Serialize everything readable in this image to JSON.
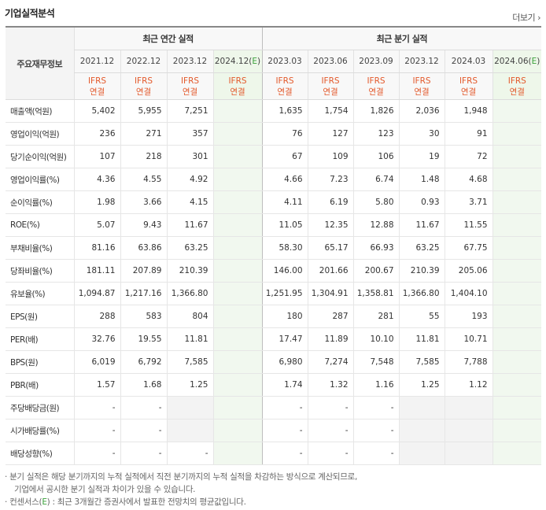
{
  "header": {
    "title": "기업실적분석",
    "more_label": "더보기 ›"
  },
  "table": {
    "row_header_label": "주요재무정보",
    "annual_group_label": "최근 연간 실적",
    "quarter_group_label": "최근 분기 실적",
    "annual_periods": [
      "2021.12",
      "2022.12",
      "2023.12",
      "2024.12(E)"
    ],
    "quarter_periods": [
      "2023.03",
      "2023.06",
      "2023.09",
      "2023.12",
      "2024.03",
      "2024.06(E)"
    ],
    "ifrs_label": "IFRS",
    "basis_label": "연결",
    "rows": [
      {
        "label": "매출액(억원)",
        "annual": [
          "5,402",
          "5,955",
          "7,251",
          ""
        ],
        "quarter": [
          "1,635",
          "1,754",
          "1,826",
          "2,036",
          "1,948",
          ""
        ]
      },
      {
        "label": "영업이익(억원)",
        "annual": [
          "236",
          "271",
          "357",
          ""
        ],
        "quarter": [
          "76",
          "127",
          "123",
          "30",
          "91",
          ""
        ]
      },
      {
        "label": "당기순이익(억원)",
        "annual": [
          "107",
          "218",
          "301",
          ""
        ],
        "quarter": [
          "67",
          "109",
          "106",
          "19",
          "72",
          ""
        ]
      },
      {
        "label": "영업이익률(%)",
        "annual": [
          "4.36",
          "4.55",
          "4.92",
          ""
        ],
        "quarter": [
          "4.66",
          "7.23",
          "6.74",
          "1.48",
          "4.68",
          ""
        ]
      },
      {
        "label": "순이익률(%)",
        "annual": [
          "1.98",
          "3.66",
          "4.15",
          ""
        ],
        "quarter": [
          "4.11",
          "6.19",
          "5.80",
          "0.93",
          "3.71",
          ""
        ]
      },
      {
        "label": "ROE(%)",
        "annual": [
          "5.07",
          "9.43",
          "11.67",
          ""
        ],
        "quarter": [
          "11.05",
          "12.35",
          "12.88",
          "11.67",
          "11.55",
          ""
        ]
      },
      {
        "label": "부채비율(%)",
        "annual": [
          "81.16",
          "63.86",
          "63.25",
          ""
        ],
        "quarter": [
          "58.30",
          "65.17",
          "66.93",
          "63.25",
          "67.75",
          ""
        ]
      },
      {
        "label": "당좌비율(%)",
        "annual": [
          "181.11",
          "207.89",
          "210.39",
          ""
        ],
        "quarter": [
          "146.00",
          "201.66",
          "200.67",
          "210.39",
          "205.06",
          ""
        ]
      },
      {
        "label": "유보율(%)",
        "annual": [
          "1,094.87",
          "1,217.16",
          "1,366.80",
          ""
        ],
        "quarter": [
          "1,251.95",
          "1,304.91",
          "1,358.81",
          "1,366.80",
          "1,404.10",
          ""
        ]
      },
      {
        "label": "EPS(원)",
        "annual": [
          "288",
          "583",
          "804",
          ""
        ],
        "quarter": [
          "180",
          "287",
          "281",
          "55",
          "193",
          ""
        ]
      },
      {
        "label": "PER(배)",
        "annual": [
          "32.76",
          "19.55",
          "11.81",
          ""
        ],
        "quarter": [
          "17.47",
          "11.89",
          "10.10",
          "11.81",
          "10.71",
          ""
        ]
      },
      {
        "label": "BPS(원)",
        "annual": [
          "6,019",
          "6,792",
          "7,585",
          ""
        ],
        "quarter": [
          "6,980",
          "7,274",
          "7,548",
          "7,585",
          "7,788",
          ""
        ]
      },
      {
        "label": "PBR(배)",
        "annual": [
          "1.57",
          "1.68",
          "1.25",
          ""
        ],
        "quarter": [
          "1.74",
          "1.32",
          "1.16",
          "1.25",
          "1.12",
          ""
        ]
      },
      {
        "label": "주당배당금(원)",
        "annual": [
          "-",
          "-",
          "",
          ""
        ],
        "quarter": [
          "-",
          "-",
          "-",
          "",
          "",
          ""
        ]
      },
      {
        "label": "시가배당률(%)",
        "annual": [
          "-",
          "-",
          "",
          ""
        ],
        "quarter": [
          "-",
          "-",
          "-",
          "",
          "",
          ""
        ]
      },
      {
        "label": "배당성향(%)",
        "annual": [
          "-",
          "-",
          "-",
          ""
        ],
        "quarter": [
          "-",
          "-",
          "-",
          "",
          "",
          ""
        ]
      }
    ]
  },
  "notes": {
    "line1": "· 분기 실적은 해당 분기까지의 누적 실적에서 직전 분기까지의 누적 실적을 차감하는 방식으로 계산되므로,",
    "line2": "기업에서 공시한 분기 실적과 차이가 있을 수 있습니다.",
    "line3_prefix": "· 컨센서스(",
    "line3_e": "E",
    "line3_suffix": ") : 최근 3개월간 증권사에서 발표한 전망치의 평균값입니다."
  }
}
